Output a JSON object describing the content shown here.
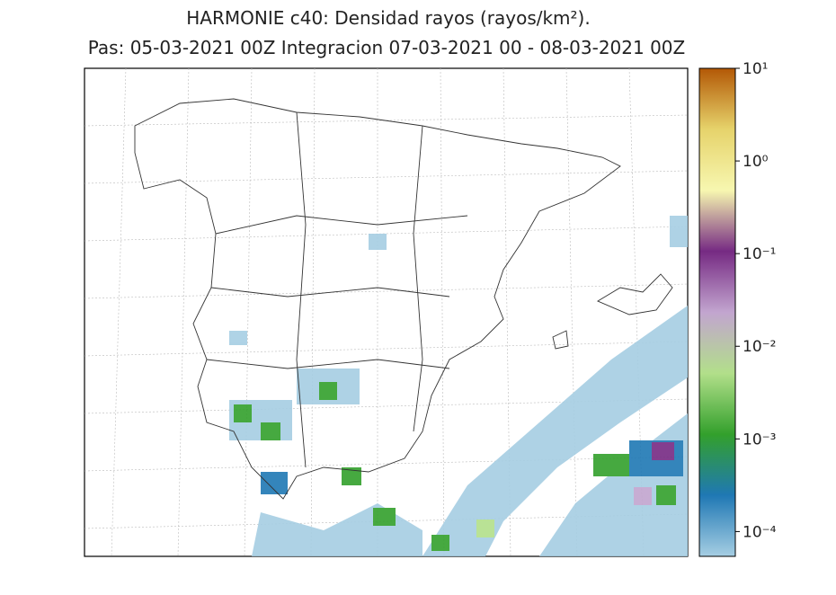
{
  "map": {
    "title": [
      "HARMONIE c40: Densidad rayos  (rayos/km²).",
      "Pas: 05-03-2021 00Z Integracion 07-03-2021 00 - 08-03-2021 00Z"
    ],
    "colorbar": {
      "scale": "log",
      "lim": [
        5.4e-05,
        10
      ],
      "colors": [
        "#a6cee3",
        "#1f78b4",
        "#33a02c",
        "#b2df8a",
        "#c2a5cf",
        "#762a83",
        "#f7f7b0",
        "#e6d36b",
        "#b35806"
      ],
      "ticks": [
        {
          "value": 0.0001,
          "label": "10⁻⁴"
        },
        {
          "value": 0.001,
          "label": "10⁻³"
        },
        {
          "value": 0.01,
          "label": "10⁻²"
        },
        {
          "value": 0.1,
          "label": "10⁻¹"
        },
        {
          "value": 1,
          "label": "10⁰"
        },
        {
          "value": 10,
          "label": "10¹"
        }
      ]
    }
  }
}
